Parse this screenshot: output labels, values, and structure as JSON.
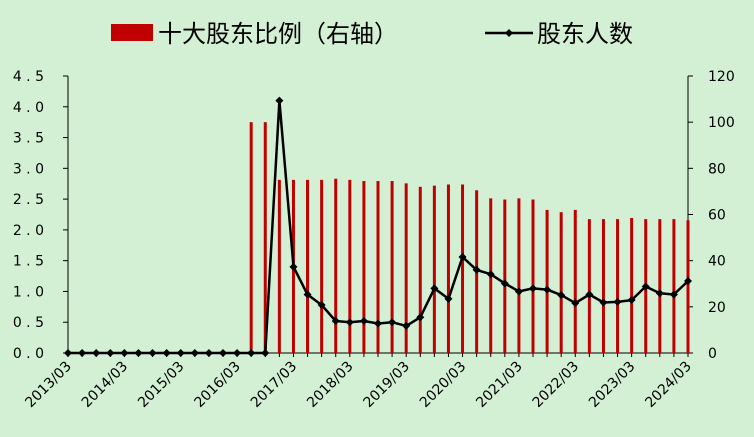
{
  "chart_data": {
    "type": "bar+line",
    "legend": {
      "placement": "top-center",
      "bar_label": "十大股东比例（右轴）",
      "line_label": "股东人数"
    },
    "x": [
      "2013/03",
      "2013/06",
      "2013/09",
      "2013/12",
      "2014/03",
      "2014/06",
      "2014/09",
      "2014/12",
      "2015/03",
      "2015/06",
      "2015/09",
      "2015/12",
      "2016/03",
      "2016/06",
      "2016/09",
      "2016/12",
      "2017/03",
      "2017/06",
      "2017/09",
      "2017/12",
      "2018/03",
      "2018/06",
      "2018/09",
      "2018/12",
      "2019/03",
      "2019/06",
      "2019/09",
      "2019/12",
      "2020/03",
      "2020/06",
      "2020/09",
      "2020/12",
      "2021/03",
      "2021/06",
      "2021/09",
      "2021/12",
      "2022/03",
      "2022/06",
      "2022/09",
      "2022/12",
      "2023/03",
      "2023/06",
      "2023/09",
      "2023/12",
      "2024/03"
    ],
    "x_tick_labels": [
      "2013/03",
      "2014/03",
      "2015/03",
      "2016/03",
      "2017/03",
      "2018/03",
      "2019/03",
      "2020/03",
      "2021/03",
      "2022/03",
      "2023/03",
      "2024/03"
    ],
    "series": [
      {
        "name": "十大股东比例（右轴）",
        "type": "bar",
        "axis": "right",
        "color": "#c00000",
        "values": [
          0,
          0,
          0,
          0,
          0,
          0,
          0,
          0,
          0,
          0,
          0,
          0,
          0,
          100,
          100,
          75,
          75,
          75,
          75,
          75.5,
          75,
          74.5,
          74.5,
          74.5,
          73.5,
          72,
          72.5,
          73,
          73,
          70.5,
          67,
          66.5,
          67,
          66.5,
          62,
          61,
          62,
          58,
          58,
          58,
          58.5,
          58,
          58,
          58,
          57.5
        ]
      },
      {
        "name": "股东人数",
        "type": "line",
        "axis": "left",
        "color": "#000000",
        "values": [
          0,
          0,
          0,
          0,
          0,
          0,
          0,
          0,
          0,
          0,
          0,
          0,
          0,
          0,
          0,
          4.1,
          1.4,
          0.95,
          0.78,
          0.52,
          0.5,
          0.52,
          0.48,
          0.5,
          0.44,
          0.58,
          1.05,
          0.88,
          1.56,
          1.35,
          1.28,
          1.13,
          1.0,
          1.05,
          1.03,
          0.94,
          0.81,
          0.95,
          0.82,
          0.83,
          0.86,
          1.08,
          0.97,
          0.95,
          1.17
        ]
      }
    ],
    "y_left": {
      "min": 0,
      "max": 4.5,
      "step": 0.5,
      "decimals": 1
    },
    "y_right": {
      "min": 0,
      "max": 120,
      "step": 20,
      "decimals": 0
    },
    "grid": false,
    "title": "",
    "xlabel": "",
    "ylabel": ""
  }
}
